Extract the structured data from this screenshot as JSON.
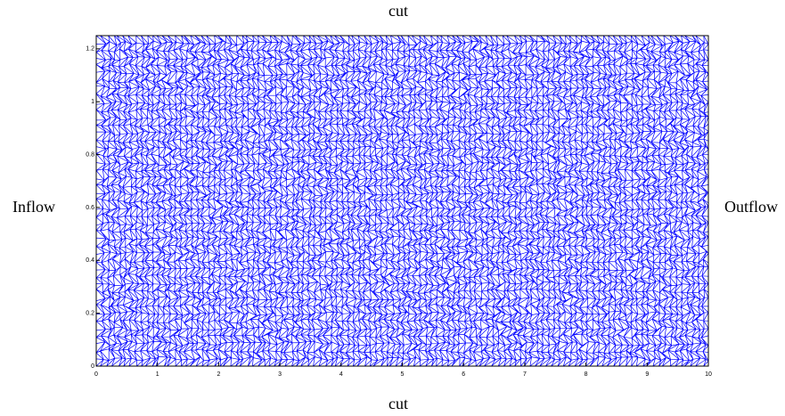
{
  "chart_data": {
    "type": "mesh",
    "top_label": "cut",
    "bottom_label": "cut",
    "left_label": "Inflow",
    "right_label": "Outflow",
    "color": "#0000ff",
    "xlim": [
      0,
      10
    ],
    "xticks": [
      0,
      1,
      2,
      3,
      4,
      5,
      6,
      7,
      8,
      9,
      10
    ],
    "ylim": [
      0,
      1.25
    ],
    "yticks": [
      0,
      0.2,
      0.4,
      0.6,
      0.8,
      1,
      1.2
    ]
  }
}
